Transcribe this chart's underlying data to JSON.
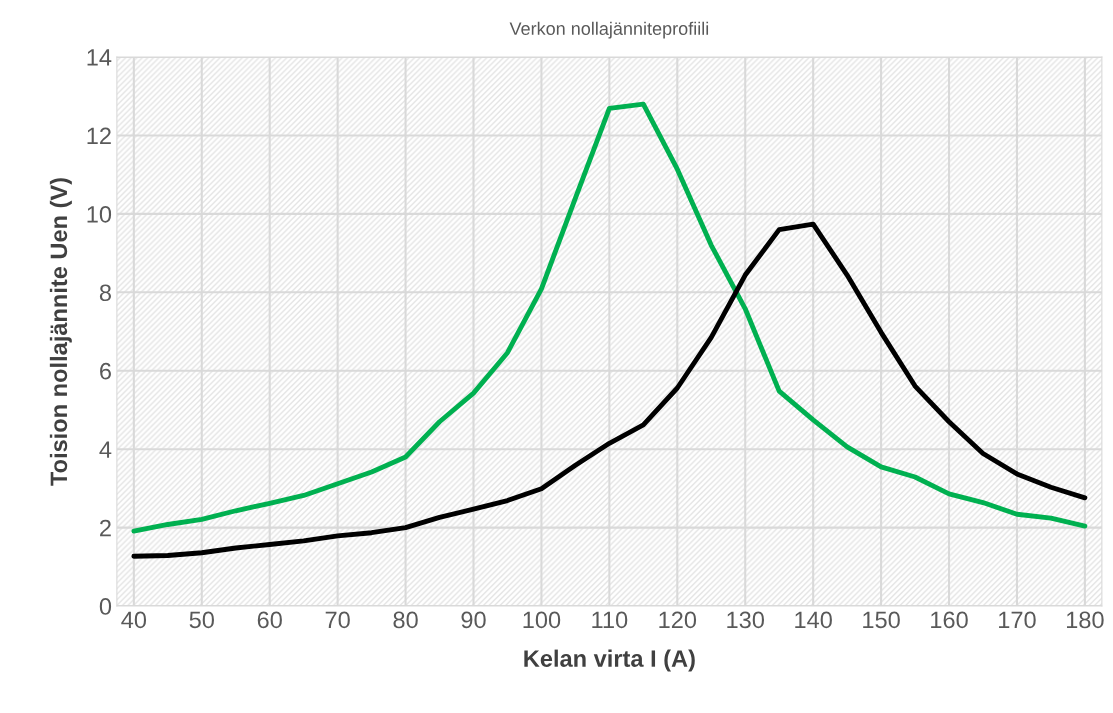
{
  "chart_data": {
    "type": "line",
    "title": "Verkon nollajänniteprofiili",
    "xlabel": "Kelan virta I (A)",
    "ylabel": "Toision nollajännite Uen (V)",
    "x": [
      40,
      45,
      50,
      55,
      60,
      65,
      70,
      75,
      80,
      85,
      90,
      95,
      100,
      105,
      110,
      115,
      120,
      125,
      130,
      135,
      140,
      145,
      150,
      155,
      160,
      165,
      170,
      175,
      180
    ],
    "series": [
      {
        "color": "#00b050",
        "values": [
          1.91,
          2.08,
          2.21,
          2.43,
          2.62,
          2.82,
          3.12,
          3.42,
          3.8,
          4.7,
          5.43,
          6.46,
          8.09,
          10.4,
          12.69,
          12.8,
          11.14,
          9.2,
          7.58,
          5.48,
          4.75,
          4.06,
          3.55,
          3.29,
          2.86,
          2.64,
          2.34,
          2.24,
          2.04
        ]
      },
      {
        "color": "#000000",
        "values": [
          1.27,
          1.29,
          1.36,
          1.48,
          1.57,
          1.66,
          1.79,
          1.87,
          2.0,
          2.26,
          2.47,
          2.69,
          2.99,
          3.59,
          4.15,
          4.62,
          5.56,
          6.85,
          8.44,
          9.6,
          9.74,
          8.44,
          6.98,
          5.61,
          4.7,
          3.89,
          3.37,
          3.03,
          2.76
        ]
      }
    ],
    "xlim": [
      37.5,
      182.5
    ],
    "xticks": [
      40,
      50,
      60,
      70,
      80,
      90,
      100,
      110,
      120,
      130,
      140,
      150,
      160,
      170,
      180
    ],
    "ylim": [
      0,
      14
    ],
    "yticks": [
      0,
      2,
      4,
      6,
      8,
      10,
      12,
      14
    ],
    "grid": true,
    "legend": false,
    "marker": "none",
    "line_style": "solid"
  }
}
